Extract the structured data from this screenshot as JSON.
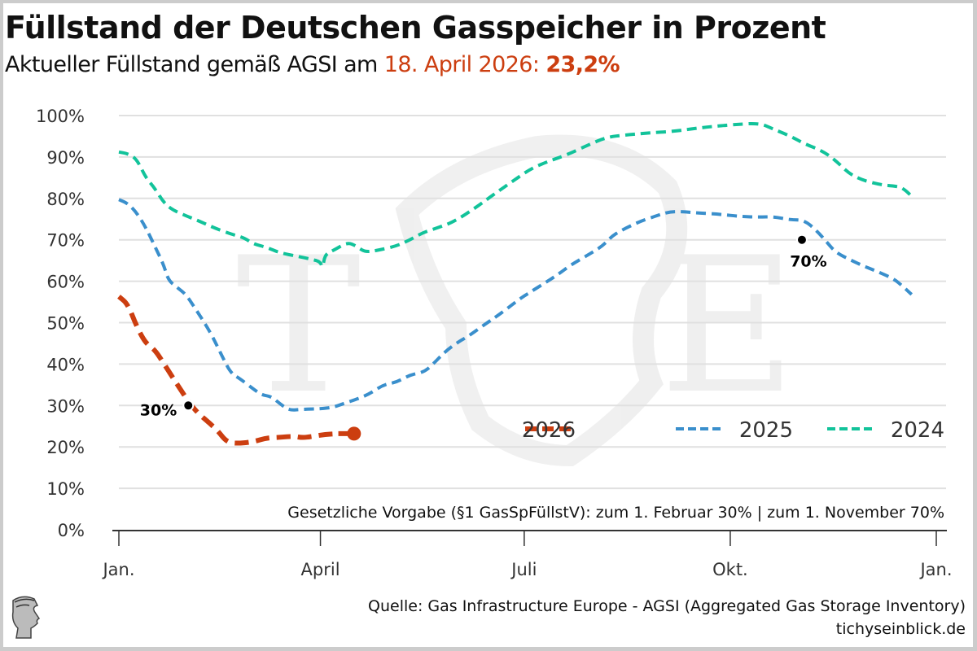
{
  "header": {
    "title": "Füllstand der Deutschen Gasspeicher in Prozent",
    "subtitle_prefix": "Aktueller Füllstand gemäß AGSI am ",
    "subtitle_date": "18. April 2026: ",
    "subtitle_value": "23,2%"
  },
  "footer": {
    "source": "Quelle: Gas Infrastructure Europe - AGSI (Aggregated Gas Storage Inventory)",
    "site": "tichyseinblick.de",
    "logo_icon": "mercury-head-logo-icon"
  },
  "colors": {
    "2026": "#cc3e10",
    "2025": "#3a8fcc",
    "2024": "#12c39a",
    "highlight": "#cc3e10"
  },
  "chart_data": {
    "type": "line",
    "title": "Füllstand der Deutschen Gasspeicher in Prozent",
    "xlabel": "",
    "ylabel": "",
    "x_unit": "day of year",
    "xlim": [
      0,
      365
    ],
    "ylim": [
      0,
      100
    ],
    "grid": true,
    "legend_position": "bottom-right",
    "x_ticks": [
      {
        "day": 0,
        "label": "Jan."
      },
      {
        "day": 90,
        "label": "April"
      },
      {
        "day": 181,
        "label": "Juli"
      },
      {
        "day": 273,
        "label": "Okt."
      },
      {
        "day": 365,
        "label": "Jan."
      }
    ],
    "y_ticks": [
      {
        "value": 0,
        "label": "0%"
      },
      {
        "value": 10,
        "label": "10%"
      },
      {
        "value": 20,
        "label": "20%"
      },
      {
        "value": 30,
        "label": "30%"
      },
      {
        "value": 40,
        "label": "40%"
      },
      {
        "value": 50,
        "label": "50%"
      },
      {
        "value": 60,
        "label": "60%"
      },
      {
        "value": 70,
        "label": "70%"
      },
      {
        "value": 80,
        "label": "80%"
      },
      {
        "value": 90,
        "label": "90%"
      },
      {
        "value": 100,
        "label": "100%"
      }
    ],
    "series": [
      {
        "name": "2024",
        "points": [
          [
            0,
            91.2
          ],
          [
            4,
            90.8
          ],
          [
            8,
            89.5
          ],
          [
            12,
            85
          ],
          [
            16,
            82.5
          ],
          [
            20,
            79
          ],
          [
            24,
            77.2
          ],
          [
            30,
            75.8
          ],
          [
            36,
            74.5
          ],
          [
            42,
            73
          ],
          [
            50,
            71.4
          ],
          [
            56,
            70.5
          ],
          [
            60,
            69
          ],
          [
            66,
            68.2
          ],
          [
            72,
            66.8
          ],
          [
            80,
            66
          ],
          [
            86,
            65.3
          ],
          [
            90,
            64.7
          ],
          [
            91,
            63
          ],
          [
            92,
            66.5
          ],
          [
            96,
            67.5
          ],
          [
            102,
            69.4
          ],
          [
            106,
            68.5
          ],
          [
            110,
            67
          ],
          [
            116,
            67.5
          ],
          [
            124,
            68.5
          ],
          [
            130,
            70
          ],
          [
            136,
            71.8
          ],
          [
            144,
            73.2
          ],
          [
            150,
            74.5
          ],
          [
            160,
            78
          ],
          [
            168,
            81.2
          ],
          [
            176,
            84.2
          ],
          [
            184,
            87.2
          ],
          [
            192,
            89
          ],
          [
            200,
            90.5
          ],
          [
            210,
            93
          ],
          [
            218,
            94.8
          ],
          [
            226,
            95.3
          ],
          [
            236,
            95.8
          ],
          [
            248,
            96.2
          ],
          [
            256,
            96.8
          ],
          [
            264,
            97.3
          ],
          [
            274,
            97.8
          ],
          [
            286,
            98.2
          ],
          [
            292,
            96.8
          ],
          [
            300,
            95
          ],
          [
            306,
            93.2
          ],
          [
            314,
            91.5
          ],
          [
            320,
            89.2
          ],
          [
            326,
            86
          ],
          [
            332,
            84.4
          ],
          [
            340,
            83.3
          ],
          [
            346,
            83
          ],
          [
            350,
            82.6
          ],
          [
            355,
            80
          ]
        ]
      },
      {
        "name": "2025",
        "points": [
          [
            0,
            79.7
          ],
          [
            4,
            78.8
          ],
          [
            8,
            76.5
          ],
          [
            12,
            73
          ],
          [
            16,
            68.5
          ],
          [
            20,
            64
          ],
          [
            22,
            60.3
          ],
          [
            26,
            58.5
          ],
          [
            30,
            56.8
          ],
          [
            34,
            53.5
          ],
          [
            38,
            50.2
          ],
          [
            42,
            46.5
          ],
          [
            46,
            42
          ],
          [
            50,
            37.8
          ],
          [
            54,
            36.5
          ],
          [
            60,
            34
          ],
          [
            64,
            32.5
          ],
          [
            68,
            32.2
          ],
          [
            72,
            30.4
          ],
          [
            76,
            28.8
          ],
          [
            82,
            29.1
          ],
          [
            90,
            29.2
          ],
          [
            96,
            29.6
          ],
          [
            100,
            30.4
          ],
          [
            106,
            31.5
          ],
          [
            112,
            32.8
          ],
          [
            118,
            35
          ],
          [
            124,
            35.6
          ],
          [
            130,
            37.4
          ],
          [
            136,
            38
          ],
          [
            140,
            39.8
          ],
          [
            146,
            43.2
          ],
          [
            152,
            45.5
          ],
          [
            156,
            46.7
          ],
          [
            164,
            49.8
          ],
          [
            170,
            52
          ],
          [
            176,
            54.5
          ],
          [
            180,
            56.1
          ],
          [
            182,
            56.8
          ],
          [
            190,
            59.5
          ],
          [
            196,
            61.6
          ],
          [
            202,
            64
          ],
          [
            210,
            66.5
          ],
          [
            216,
            68.5
          ],
          [
            220,
            70.8
          ],
          [
            224,
            72.2
          ],
          [
            232,
            74.3
          ],
          [
            240,
            75.8
          ],
          [
            246,
            76.8
          ],
          [
            252,
            76.8
          ],
          [
            258,
            76.5
          ],
          [
            268,
            76.2
          ],
          [
            278,
            75.6
          ],
          [
            286,
            75.5
          ],
          [
            292,
            75.6
          ],
          [
            300,
            74.8
          ],
          [
            306,
            74.8
          ],
          [
            312,
            72
          ],
          [
            316,
            69.5
          ],
          [
            320,
            67
          ],
          [
            326,
            65.3
          ],
          [
            332,
            63.8
          ],
          [
            338,
            62.5
          ],
          [
            346,
            60.6
          ],
          [
            350,
            58.8
          ],
          [
            354,
            56.8
          ]
        ]
      },
      {
        "name": "2026",
        "points": [
          [
            0,
            56.3
          ],
          [
            4,
            54.5
          ],
          [
            8,
            49
          ],
          [
            12,
            45
          ],
          [
            16,
            43.5
          ],
          [
            20,
            40.2
          ],
          [
            24,
            36.8
          ],
          [
            28,
            33.5
          ],
          [
            32,
            30.2
          ],
          [
            36,
            27.8
          ],
          [
            40,
            26
          ],
          [
            44,
            24
          ],
          [
            48,
            21.3
          ],
          [
            52,
            20.8
          ],
          [
            60,
            21.2
          ],
          [
            66,
            22.2
          ],
          [
            72,
            22.3
          ],
          [
            78,
            22.6
          ],
          [
            82,
            22.2
          ],
          [
            86,
            22.5
          ],
          [
            92,
            23
          ],
          [
            98,
            23.2
          ]
        ]
      }
    ],
    "current_point": {
      "series": "2026",
      "day": 105,
      "value": 23.2
    },
    "legend": [
      "2026",
      "2025",
      "2024"
    ],
    "annotations": [
      {
        "label": "30%",
        "day": 31,
        "value": 30
      },
      {
        "label": "70%",
        "day": 305,
        "value": 70
      },
      {
        "label": "Gesetzliche Vorgabe (§1 GasSpFüllstV): zum 1. Februar 30% | zum 1. November 70%"
      }
    ]
  }
}
